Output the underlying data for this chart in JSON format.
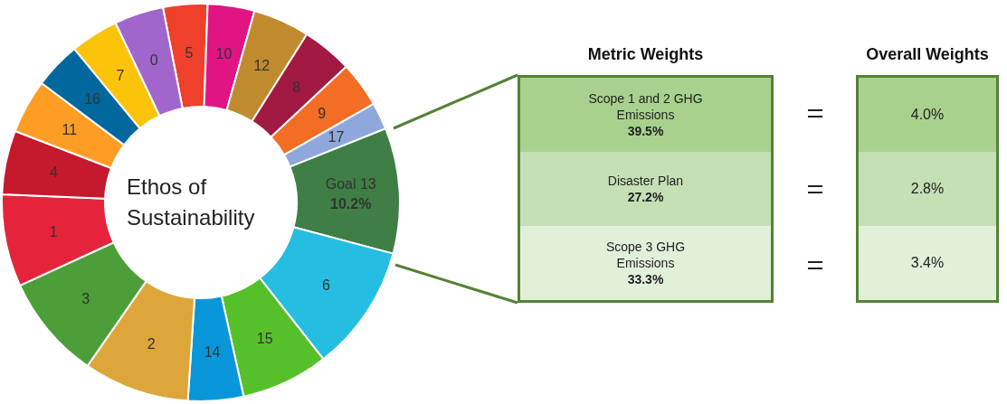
{
  "chart_data": [
    {
      "type": "donut",
      "title": "Ethos of Sustainability",
      "categories": [
        "5",
        "10",
        "12",
        "8",
        "9",
        "17",
        "Goal 13",
        "6",
        "15",
        "14",
        "2",
        "3",
        "1",
        "4",
        "11",
        "16",
        "7",
        "0"
      ],
      "values": [
        3.6,
        3.8,
        4.6,
        4.1,
        3.7,
        2.2,
        10.2,
        10.3,
        7.1,
        4.5,
        8.6,
        8.5,
        7.5,
        5.2,
        4.4,
        3.8,
        3.9,
        4.0
      ],
      "value_labels": [
        null,
        null,
        null,
        null,
        null,
        null,
        "10.2%",
        null,
        null,
        null,
        null,
        null,
        null,
        null,
        null,
        null,
        null,
        null
      ],
      "colors": [
        "#ef402b",
        "#e11484",
        "#bf8b2e",
        "#a21942",
        "#f36d25",
        "#8fa8dc",
        "#3f7e44",
        "#26bde2",
        "#56c02b",
        "#0a97d9",
        "#dda63a",
        "#4c9f38",
        "#e5243b",
        "#c5192d",
        "#fd9d24",
        "#00689d",
        "#fcc30b",
        "#a066cc"
      ],
      "legend": false
    },
    {
      "type": "other",
      "categories": [
        "Scope 1 and 2 GHG Emissions",
        "Disaster Plan",
        "Scope 3 GHG Emissions"
      ],
      "series": [
        {
          "name": "Metric Weights",
          "colors": [
            "#a9d18e",
            "#c5e0b4",
            "#e2f0d9"
          ],
          "values": [
            39.5,
            27.2,
            33.3
          ],
          "value_labels": [
            "39.5%",
            "27.2%",
            "33.3%"
          ]
        },
        {
          "name": "Overall Weights",
          "colors": [
            "#a9d18e",
            "#c5e0b4",
            "#e2f0d9"
          ],
          "values": [
            4.0,
            2.8,
            3.4
          ],
          "value_labels": [
            "4.0%",
            "2.8%",
            "3.4%"
          ]
        }
      ]
    }
  ]
}
